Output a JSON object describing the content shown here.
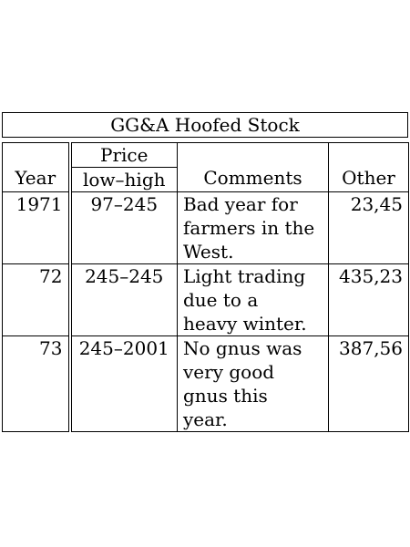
{
  "title": "GG&A Hoofed Stock",
  "headers": {
    "year": "Year",
    "price_group": "Price",
    "price_sub": "low–high",
    "comments": "Comments",
    "other": "Other"
  },
  "rows": [
    {
      "year": "1971",
      "price": "97–245",
      "comments_lines": [
        "Bad year for",
        "farmers in the",
        "West."
      ],
      "other": "23,45"
    },
    {
      "year": "72",
      "price": "245–245",
      "comments_lines": [
        "Light trading",
        "due to a",
        "heavy winter."
      ],
      "other": "435,23"
    },
    {
      "year": "73",
      "price": "245–2001",
      "comments_lines": [
        "No gnus was",
        "very good",
        "gnus this",
        "year."
      ],
      "other": "387,56"
    }
  ]
}
